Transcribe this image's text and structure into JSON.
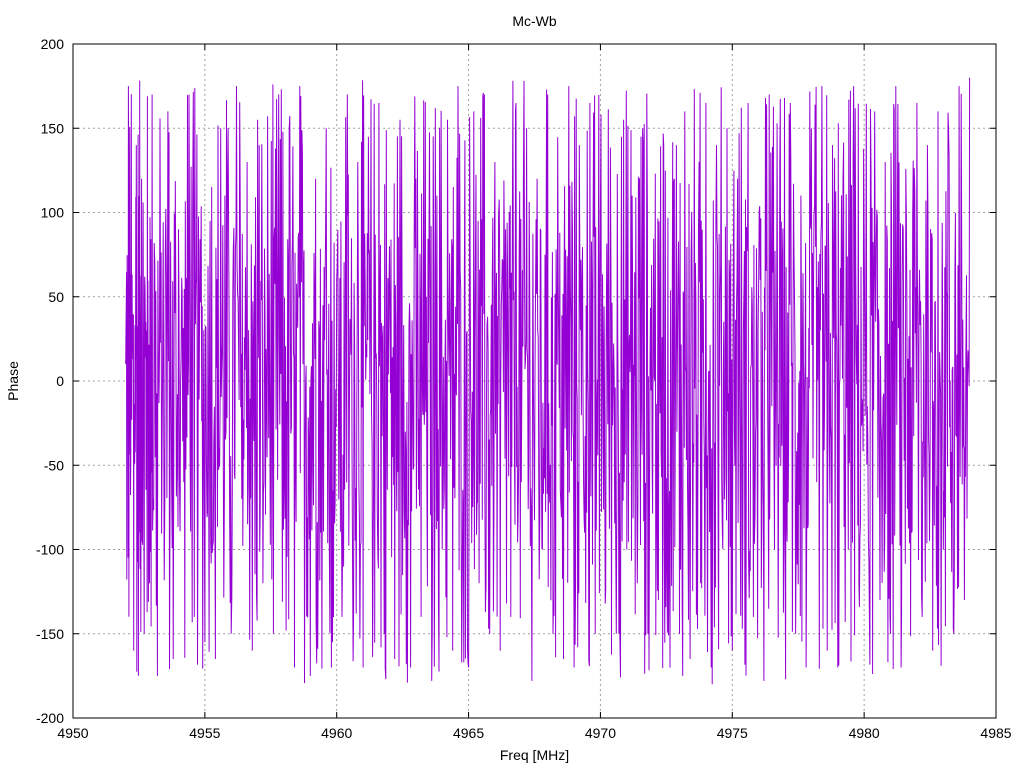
{
  "chart_data": {
    "type": "line",
    "title": "Mc-Wb",
    "xlabel": "Freq [MHz]",
    "ylabel": "Phase",
    "xlim": [
      4950,
      4985
    ],
    "ylim": [
      -200,
      200
    ],
    "xticks": [
      4950,
      4955,
      4960,
      4965,
      4970,
      4975,
      4980,
      4985
    ],
    "yticks": [
      -200,
      -150,
      -100,
      -50,
      0,
      50,
      100,
      150,
      200
    ],
    "grid": true,
    "legend": "none",
    "series": [
      {
        "color": "#9400d3",
        "x_start": 4952.0,
        "x_end": 4984.0,
        "y_min": -180,
        "y_max": 180,
        "points": [
          [
            4952.0,
            10
          ],
          [
            4952.1,
            175
          ],
          [
            4952.2,
            60
          ],
          [
            4952.3,
            -160
          ],
          [
            4952.4,
            140
          ],
          [
            4952.5,
            -90
          ],
          [
            4952.6,
            120
          ],
          [
            4952.7,
            -150
          ],
          [
            4952.8,
            30
          ],
          [
            4952.9,
            -120
          ],
          [
            4953.0,
            170
          ],
          [
            4953.2,
            -175
          ],
          [
            4953.4,
            20
          ],
          [
            4953.6,
            160
          ],
          [
            4953.8,
            -165
          ],
          [
            4954.0,
            90
          ],
          [
            4954.2,
            -60
          ],
          [
            4954.4,
            170
          ],
          [
            4954.6,
            -140
          ],
          [
            4954.8,
            40
          ],
          [
            4955.0,
            -155
          ],
          [
            4955.2,
            95
          ],
          [
            4955.4,
            -165
          ],
          [
            4955.6,
            150
          ],
          [
            4955.8,
            -30
          ],
          [
            4956.0,
            -150
          ],
          [
            4956.2,
            175
          ],
          [
            4956.4,
            -70
          ],
          [
            4956.6,
            130
          ],
          [
            4956.8,
            -160
          ],
          [
            4957.0,
            155
          ],
          [
            4957.2,
            -120
          ],
          [
            4957.4,
            40
          ],
          [
            4957.6,
            -150
          ],
          [
            4957.8,
            170
          ],
          [
            4958.0,
            -60
          ],
          [
            4958.2,
            150
          ],
          [
            4958.4,
            -170
          ],
          [
            4958.6,
            175
          ],
          [
            4958.8,
            -40
          ],
          [
            4959.0,
            -175
          ],
          [
            4959.2,
            120
          ],
          [
            4959.4,
            -90
          ],
          [
            4959.6,
            150
          ],
          [
            4959.8,
            -170
          ],
          [
            4960.0,
            60
          ],
          [
            4960.2,
            -140
          ],
          [
            4960.4,
            170
          ],
          [
            4960.6,
            -100
          ],
          [
            4960.8,
            130
          ],
          [
            4961.0,
            -170
          ],
          [
            4961.2,
            145
          ],
          [
            4961.4,
            -60
          ],
          [
            4961.6,
            165
          ],
          [
            4961.8,
            -150
          ],
          [
            4962.0,
            80
          ],
          [
            4962.2,
            -165
          ],
          [
            4962.4,
            155
          ],
          [
            4962.6,
            -30
          ],
          [
            4962.8,
            -170
          ],
          [
            4963.0,
            120
          ],
          [
            4963.2,
            -140
          ],
          [
            4963.4,
            50
          ],
          [
            4963.6,
            -178
          ],
          [
            4963.8,
            110
          ],
          [
            4964.0,
            -100
          ],
          [
            4964.2,
            155
          ],
          [
            4964.4,
            -160
          ],
          [
            4964.6,
            175
          ],
          [
            4964.8,
            -80
          ],
          [
            4965.0,
            -170
          ],
          [
            4965.2,
            160
          ],
          [
            4965.4,
            -120
          ],
          [
            4965.6,
            170
          ],
          [
            4965.8,
            -150
          ],
          [
            4966.0,
            130
          ],
          [
            4966.2,
            -160
          ],
          [
            4966.4,
            90
          ],
          [
            4966.6,
            -140
          ],
          [
            4966.8,
            165
          ],
          [
            4967.0,
            -60
          ],
          [
            4967.2,
            150
          ],
          [
            4967.4,
            -178
          ],
          [
            4967.6,
            120
          ],
          [
            4967.8,
            -100
          ],
          [
            4968.0,
            170
          ],
          [
            4968.2,
            -150
          ],
          [
            4968.4,
            60
          ],
          [
            4968.6,
            -165
          ],
          [
            4968.8,
            175
          ],
          [
            4969.0,
            -170
          ],
          [
            4969.2,
            140
          ],
          [
            4969.4,
            -90
          ],
          [
            4969.6,
            165
          ],
          [
            4969.8,
            -150
          ],
          [
            4970.0,
            100
          ],
          [
            4970.2,
            -125
          ],
          [
            4970.4,
            60
          ],
          [
            4970.6,
            -150
          ],
          [
            4970.8,
            145
          ],
          [
            4971.0,
            -100
          ],
          [
            4971.2,
            110
          ],
          [
            4971.4,
            -120
          ],
          [
            4971.6,
            150
          ],
          [
            4971.8,
            -150
          ],
          [
            4972.0,
            40
          ],
          [
            4972.2,
            -130
          ],
          [
            4972.4,
            140
          ],
          [
            4972.6,
            -90
          ],
          [
            4972.8,
            120
          ],
          [
            4973.0,
            -150
          ],
          [
            4973.2,
            160
          ],
          [
            4973.4,
            -165
          ],
          [
            4973.6,
            70
          ],
          [
            4973.8,
            -120
          ],
          [
            4974.0,
            165
          ],
          [
            4974.2,
            -170
          ],
          [
            4974.4,
            140
          ],
          [
            4974.6,
            -60
          ],
          [
            4974.8,
            150
          ],
          [
            4975.0,
            -160
          ],
          [
            4975.2,
            120
          ],
          [
            4975.4,
            -90
          ],
          [
            4975.6,
            165
          ],
          [
            4975.8,
            -140
          ],
          [
            4976.0,
            60
          ],
          [
            4976.2,
            -178
          ],
          [
            4976.4,
            170
          ],
          [
            4976.6,
            -100
          ],
          [
            4976.8,
            130
          ],
          [
            4977.0,
            -90
          ],
          [
            4977.2,
            165
          ],
          [
            4977.4,
            -150
          ],
          [
            4977.6,
            110
          ],
          [
            4977.8,
            -170
          ],
          [
            4978.0,
            150
          ],
          [
            4978.2,
            -60
          ],
          [
            4978.4,
            175
          ],
          [
            4978.6,
            -160
          ],
          [
            4978.8,
            140
          ],
          [
            4979.0,
            -170
          ],
          [
            4979.2,
            120
          ],
          [
            4979.4,
            -100
          ],
          [
            4979.6,
            175
          ],
          [
            4979.8,
            -120
          ],
          [
            4980.0,
            90
          ],
          [
            4980.2,
            -140
          ],
          [
            4980.4,
            160
          ],
          [
            4980.6,
            -130
          ],
          [
            4980.8,
            130
          ],
          [
            4981.0,
            -150
          ],
          [
            4981.2,
            175
          ],
          [
            4981.4,
            -170
          ],
          [
            4981.6,
            100
          ],
          [
            4981.8,
            -90
          ],
          [
            4982.0,
            165
          ],
          [
            4982.2,
            -140
          ],
          [
            4982.4,
            140
          ],
          [
            4982.6,
            -160
          ],
          [
            4982.8,
            160
          ],
          [
            4983.0,
            -100
          ],
          [
            4983.2,
            150
          ],
          [
            4983.4,
            -150
          ],
          [
            4983.6,
            175
          ],
          [
            4983.8,
            -130
          ],
          [
            4984.0,
            180
          ]
        ]
      }
    ]
  }
}
